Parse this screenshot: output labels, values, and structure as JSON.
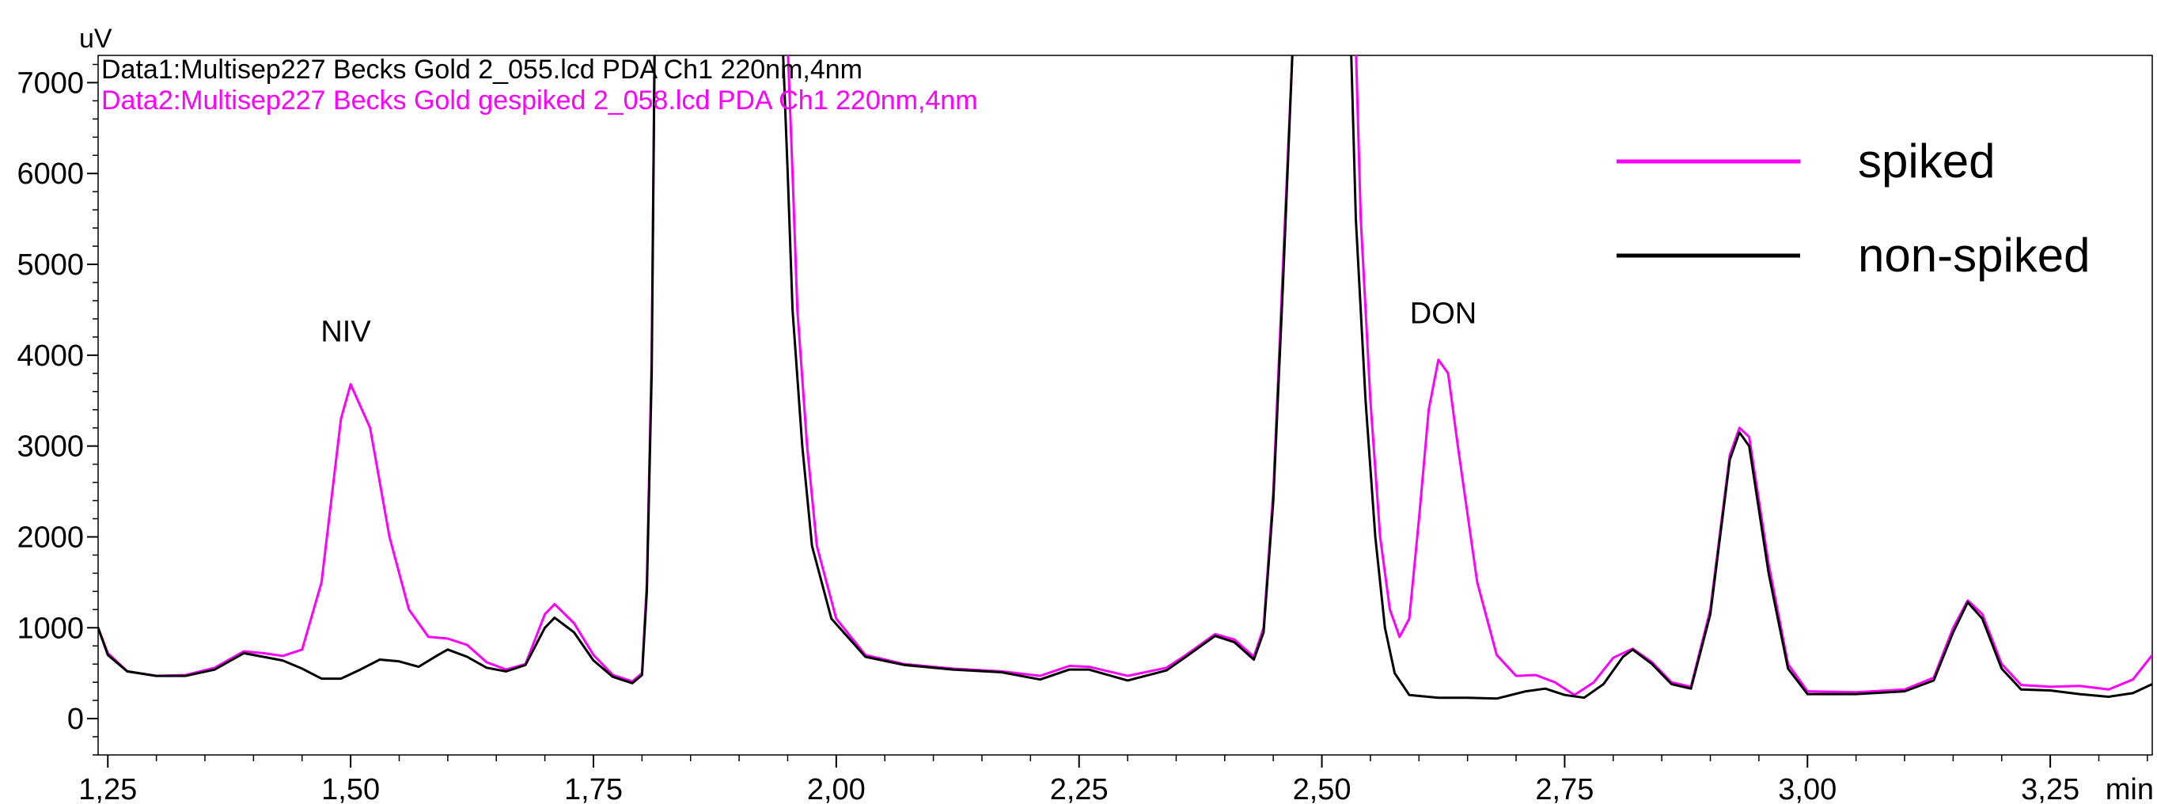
{
  "chart_data": {
    "type": "line",
    "header_lines": [
      {
        "text": "Data1:Multisep227 Becks Gold 2_055.lcd PDA Ch1 220nm,4nm",
        "color": "#000000"
      },
      {
        "text": "Data2:Multisep227 Becks Gold gespiked 2_058.lcd PDA Ch1 220nm,4nm",
        "color": "#ff00ff"
      }
    ],
    "ylabel": "uV",
    "xlabel": "min",
    "xlim": [
      1.24,
      3.355
    ],
    "ylim": [
      -400,
      7300
    ],
    "x_ticks": [
      1.25,
      1.5,
      1.75,
      2.0,
      2.25,
      2.5,
      2.75,
      3.0,
      3.25
    ],
    "x_tick_labels": [
      "1,25",
      "1,50",
      "1,75",
      "2,00",
      "2,25",
      "2,50",
      "2,75",
      "3,00",
      "3,25"
    ],
    "x_minor_step": 0.05,
    "y_ticks": [
      0,
      1000,
      2000,
      3000,
      4000,
      5000,
      6000,
      7000
    ],
    "y_tick_labels": [
      "0",
      "1000",
      "2000",
      "3000",
      "4000",
      "5000",
      "6000",
      "7000"
    ],
    "y_minor_step": 200,
    "grid": false,
    "legend_position": "top-right",
    "annotations": [
      {
        "text": "NIV",
        "x": 1.495,
        "y": 4150
      },
      {
        "text": "DON",
        "x": 2.625,
        "y": 4350
      }
    ],
    "series": [
      {
        "name": "spiked",
        "color": "#ff00ff",
        "points": [
          [
            1.24,
            1000
          ],
          [
            1.25,
            720
          ],
          [
            1.27,
            520
          ],
          [
            1.3,
            470
          ],
          [
            1.33,
            480
          ],
          [
            1.36,
            560
          ],
          [
            1.39,
            740
          ],
          [
            1.41,
            720
          ],
          [
            1.43,
            690
          ],
          [
            1.45,
            760
          ],
          [
            1.47,
            1500
          ],
          [
            1.49,
            3300
          ],
          [
            1.5,
            3680
          ],
          [
            1.52,
            3200
          ],
          [
            1.54,
            2000
          ],
          [
            1.56,
            1200
          ],
          [
            1.58,
            900
          ],
          [
            1.6,
            880
          ],
          [
            1.62,
            810
          ],
          [
            1.64,
            620
          ],
          [
            1.66,
            540
          ],
          [
            1.68,
            600
          ],
          [
            1.7,
            1150
          ],
          [
            1.71,
            1260
          ],
          [
            1.73,
            1050
          ],
          [
            1.75,
            700
          ],
          [
            1.77,
            480
          ],
          [
            1.79,
            410
          ],
          [
            1.8,
            500
          ],
          [
            1.805,
            1500
          ],
          [
            1.81,
            4000
          ],
          [
            1.813,
            7400
          ],
          [
            1.95,
            7400
          ],
          [
            1.955,
            6000
          ],
          [
            1.96,
            4500
          ],
          [
            1.97,
            3000
          ],
          [
            1.98,
            1900
          ],
          [
            2.0,
            1100
          ],
          [
            2.03,
            700
          ],
          [
            2.07,
            600
          ],
          [
            2.12,
            550
          ],
          [
            2.17,
            520
          ],
          [
            2.21,
            470
          ],
          [
            2.24,
            580
          ],
          [
            2.26,
            570
          ],
          [
            2.3,
            470
          ],
          [
            2.34,
            560
          ],
          [
            2.36,
            700
          ],
          [
            2.39,
            930
          ],
          [
            2.41,
            870
          ],
          [
            2.43,
            680
          ],
          [
            2.44,
            1000
          ],
          [
            2.45,
            2500
          ],
          [
            2.46,
            5000
          ],
          [
            2.47,
            7400
          ],
          [
            2.535,
            7400
          ],
          [
            2.54,
            5500
          ],
          [
            2.55,
            3500
          ],
          [
            2.56,
            2000
          ],
          [
            2.57,
            1200
          ],
          [
            2.58,
            900
          ],
          [
            2.59,
            1100
          ],
          [
            2.6,
            2200
          ],
          [
            2.61,
            3400
          ],
          [
            2.62,
            3950
          ],
          [
            2.63,
            3800
          ],
          [
            2.64,
            3000
          ],
          [
            2.66,
            1500
          ],
          [
            2.68,
            700
          ],
          [
            2.7,
            470
          ],
          [
            2.72,
            480
          ],
          [
            2.74,
            400
          ],
          [
            2.76,
            260
          ],
          [
            2.78,
            400
          ],
          [
            2.8,
            670
          ],
          [
            2.82,
            770
          ],
          [
            2.84,
            620
          ],
          [
            2.86,
            400
          ],
          [
            2.88,
            350
          ],
          [
            2.9,
            1200
          ],
          [
            2.92,
            2900
          ],
          [
            2.93,
            3200
          ],
          [
            2.94,
            3100
          ],
          [
            2.96,
            1700
          ],
          [
            2.98,
            600
          ],
          [
            3.0,
            300
          ],
          [
            3.05,
            290
          ],
          [
            3.1,
            320
          ],
          [
            3.13,
            450
          ],
          [
            3.15,
            1000
          ],
          [
            3.165,
            1300
          ],
          [
            3.18,
            1150
          ],
          [
            3.2,
            600
          ],
          [
            3.22,
            370
          ],
          [
            3.25,
            350
          ],
          [
            3.28,
            360
          ],
          [
            3.31,
            320
          ],
          [
            3.335,
            430
          ],
          [
            3.355,
            700
          ]
        ]
      },
      {
        "name": "non-spiked",
        "color": "#000000",
        "points": [
          [
            1.24,
            1000
          ],
          [
            1.25,
            700
          ],
          [
            1.27,
            520
          ],
          [
            1.3,
            470
          ],
          [
            1.33,
            470
          ],
          [
            1.36,
            540
          ],
          [
            1.39,
            720
          ],
          [
            1.41,
            680
          ],
          [
            1.43,
            640
          ],
          [
            1.45,
            550
          ],
          [
            1.47,
            440
          ],
          [
            1.49,
            440
          ],
          [
            1.51,
            540
          ],
          [
            1.53,
            650
          ],
          [
            1.55,
            630
          ],
          [
            1.57,
            570
          ],
          [
            1.59,
            700
          ],
          [
            1.6,
            760
          ],
          [
            1.62,
            680
          ],
          [
            1.64,
            560
          ],
          [
            1.66,
            520
          ],
          [
            1.68,
            590
          ],
          [
            1.7,
            1000
          ],
          [
            1.71,
            1110
          ],
          [
            1.73,
            950
          ],
          [
            1.75,
            640
          ],
          [
            1.77,
            460
          ],
          [
            1.79,
            390
          ],
          [
            1.8,
            480
          ],
          [
            1.805,
            1400
          ],
          [
            1.81,
            3800
          ],
          [
            1.813,
            7400
          ],
          [
            1.945,
            7400
          ],
          [
            1.95,
            6000
          ],
          [
            1.955,
            4500
          ],
          [
            1.965,
            3000
          ],
          [
            1.975,
            1900
          ],
          [
            1.995,
            1100
          ],
          [
            2.03,
            680
          ],
          [
            2.07,
            590
          ],
          [
            2.12,
            540
          ],
          [
            2.17,
            510
          ],
          [
            2.21,
            430
          ],
          [
            2.24,
            540
          ],
          [
            2.26,
            540
          ],
          [
            2.3,
            420
          ],
          [
            2.34,
            530
          ],
          [
            2.36,
            680
          ],
          [
            2.39,
            910
          ],
          [
            2.41,
            840
          ],
          [
            2.43,
            650
          ],
          [
            2.44,
            950
          ],
          [
            2.45,
            2400
          ],
          [
            2.46,
            4800
          ],
          [
            2.47,
            7400
          ],
          [
            2.53,
            7400
          ],
          [
            2.535,
            5500
          ],
          [
            2.545,
            3500
          ],
          [
            2.555,
            2000
          ],
          [
            2.565,
            1000
          ],
          [
            2.575,
            500
          ],
          [
            2.59,
            260
          ],
          [
            2.62,
            230
          ],
          [
            2.65,
            230
          ],
          [
            2.68,
            220
          ],
          [
            2.71,
            300
          ],
          [
            2.73,
            330
          ],
          [
            2.75,
            260
          ],
          [
            2.77,
            230
          ],
          [
            2.79,
            380
          ],
          [
            2.81,
            680
          ],
          [
            2.82,
            760
          ],
          [
            2.84,
            600
          ],
          [
            2.86,
            380
          ],
          [
            2.88,
            330
          ],
          [
            2.9,
            1150
          ],
          [
            2.92,
            2850
          ],
          [
            2.93,
            3150
          ],
          [
            2.94,
            3000
          ],
          [
            2.96,
            1600
          ],
          [
            2.98,
            550
          ],
          [
            3.0,
            270
          ],
          [
            3.05,
            270
          ],
          [
            3.1,
            300
          ],
          [
            3.13,
            420
          ],
          [
            3.15,
            950
          ],
          [
            3.165,
            1280
          ],
          [
            3.18,
            1100
          ],
          [
            3.2,
            550
          ],
          [
            3.22,
            320
          ],
          [
            3.25,
            310
          ],
          [
            3.28,
            270
          ],
          [
            3.31,
            240
          ],
          [
            3.335,
            280
          ],
          [
            3.355,
            380
          ]
        ]
      }
    ]
  }
}
